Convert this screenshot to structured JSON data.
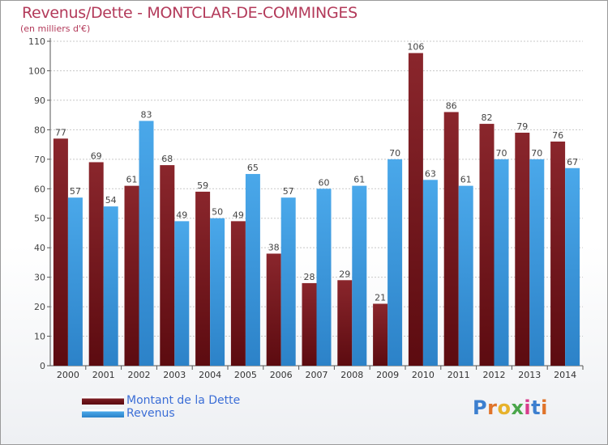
{
  "chart_data": {
    "type": "bar",
    "title": "Revenus/Dette - MONTCLAR-DE-COMMINGES",
    "subtitle": "(en milliers d'€)",
    "categories": [
      "2000",
      "2001",
      "2002",
      "2003",
      "2004",
      "2005",
      "2006",
      "2007",
      "2008",
      "2009",
      "2010",
      "2011",
      "2012",
      "2013",
      "2014"
    ],
    "series": [
      {
        "name": "Montant de la Dette",
        "color": "#7b1c22",
        "values": [
          77,
          69,
          61,
          68,
          59,
          49,
          38,
          28,
          29,
          21,
          106,
          86,
          82,
          79,
          76
        ]
      },
      {
        "name": "Revenus",
        "color": "#3c9be0",
        "values": [
          57,
          54,
          83,
          49,
          50,
          65,
          57,
          60,
          61,
          70,
          63,
          61,
          70,
          70,
          67
        ]
      }
    ],
    "ylim": [
      0,
      110
    ],
    "yticks": [
      0,
      10,
      20,
      30,
      40,
      50,
      60,
      70,
      80,
      90,
      100,
      110
    ],
    "grid": true,
    "legend_position": "bottom-left"
  },
  "logo": {
    "letters": [
      "P",
      "r",
      "o",
      "x",
      "i",
      "t",
      "i"
    ],
    "colors": [
      "#3c7fcf",
      "#e0742a",
      "#e7b22b",
      "#4aa64a",
      "#d83c8c",
      "#3c7fcf",
      "#e0742a"
    ]
  }
}
